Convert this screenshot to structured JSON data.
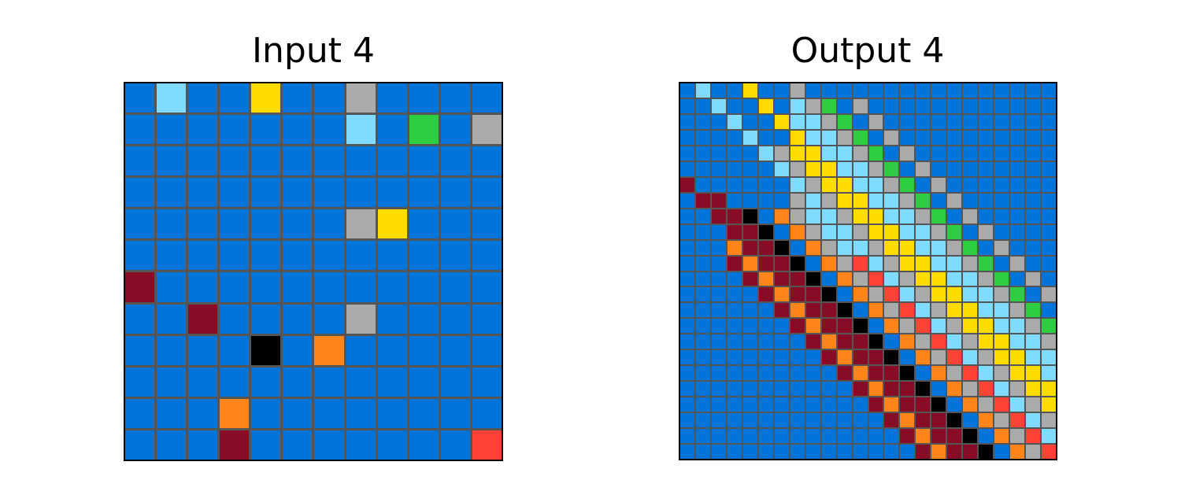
{
  "input_title": "Input 4",
  "output_title": "Output 4",
  "palette": {
    "0": "#000000",
    "1": "#0074D9",
    "2": "#FF4136",
    "3": "#2ECC40",
    "4": "#FFDC00",
    "5": "#AAAAAA",
    "6": "#F012BE",
    "7": "#FF851B",
    "8": "#7FDBFF",
    "9": "#870C25"
  },
  "input_grid": [
    [
      1,
      8,
      1,
      1,
      4,
      1,
      1,
      5,
      1,
      1,
      1,
      1
    ],
    [
      1,
      1,
      1,
      1,
      1,
      1,
      1,
      8,
      1,
      3,
      1,
      5
    ],
    [
      1,
      1,
      1,
      1,
      1,
      1,
      1,
      1,
      1,
      1,
      1,
      1
    ],
    [
      1,
      1,
      1,
      1,
      1,
      1,
      1,
      1,
      1,
      1,
      1,
      1
    ],
    [
      1,
      1,
      1,
      1,
      1,
      1,
      1,
      5,
      4,
      1,
      1,
      1
    ],
    [
      1,
      1,
      1,
      1,
      1,
      1,
      1,
      1,
      1,
      1,
      1,
      1
    ],
    [
      9,
      1,
      1,
      1,
      1,
      1,
      1,
      1,
      1,
      1,
      1,
      1
    ],
    [
      1,
      1,
      9,
      1,
      1,
      1,
      1,
      5,
      1,
      1,
      1,
      1
    ],
    [
      1,
      1,
      1,
      1,
      0,
      1,
      7,
      1,
      1,
      1,
      1,
      1
    ],
    [
      1,
      1,
      1,
      1,
      1,
      1,
      1,
      1,
      1,
      1,
      1,
      1
    ],
    [
      1,
      1,
      1,
      7,
      1,
      1,
      1,
      1,
      1,
      1,
      1,
      1
    ],
    [
      1,
      1,
      1,
      9,
      1,
      1,
      1,
      1,
      1,
      1,
      1,
      2
    ]
  ],
  "output_grid": [
    [
      1,
      8,
      1,
      1,
      4,
      1,
      1,
      5,
      1,
      1,
      1,
      1,
      1,
      1,
      1,
      1,
      1,
      1,
      1,
      1,
      1,
      1,
      1,
      1
    ],
    [
      1,
      1,
      8,
      1,
      1,
      4,
      1,
      8,
      5,
      3,
      1,
      5,
      1,
      1,
      1,
      1,
      1,
      1,
      1,
      1,
      1,
      1,
      1,
      1
    ],
    [
      1,
      1,
      1,
      8,
      1,
      1,
      4,
      8,
      8,
      5,
      3,
      1,
      5,
      1,
      1,
      1,
      1,
      1,
      1,
      1,
      1,
      1,
      1,
      1
    ],
    [
      1,
      1,
      1,
      1,
      8,
      1,
      1,
      4,
      8,
      8,
      5,
      3,
      1,
      5,
      1,
      1,
      1,
      1,
      1,
      1,
      1,
      1,
      1,
      1
    ],
    [
      1,
      1,
      1,
      1,
      1,
      8,
      5,
      4,
      4,
      8,
      8,
      5,
      3,
      1,
      5,
      1,
      1,
      1,
      1,
      1,
      1,
      1,
      1,
      1
    ],
    [
      1,
      1,
      1,
      1,
      1,
      1,
      8,
      5,
      4,
      4,
      8,
      8,
      5,
      3,
      1,
      5,
      1,
      1,
      1,
      1,
      1,
      1,
      1,
      1
    ],
    [
      9,
      1,
      1,
      1,
      1,
      1,
      1,
      8,
      5,
      4,
      4,
      8,
      8,
      5,
      3,
      1,
      5,
      1,
      1,
      1,
      1,
      1,
      1,
      1
    ],
    [
      1,
      9,
      9,
      1,
      1,
      1,
      1,
      5,
      8,
      5,
      4,
      4,
      8,
      8,
      5,
      3,
      1,
      5,
      1,
      1,
      1,
      1,
      1,
      1
    ],
    [
      1,
      1,
      9,
      9,
      0,
      1,
      7,
      5,
      8,
      8,
      5,
      4,
      4,
      8,
      8,
      5,
      3,
      1,
      5,
      1,
      1,
      1,
      1,
      1
    ],
    [
      1,
      1,
      1,
      9,
      9,
      0,
      1,
      7,
      5,
      8,
      8,
      5,
      4,
      4,
      8,
      8,
      5,
      3,
      1,
      5,
      1,
      1,
      1,
      1
    ],
    [
      1,
      1,
      1,
      7,
      9,
      9,
      0,
      1,
      7,
      5,
      8,
      8,
      5,
      4,
      4,
      8,
      8,
      5,
      3,
      1,
      5,
      1,
      1,
      1
    ],
    [
      1,
      1,
      1,
      9,
      7,
      9,
      9,
      0,
      1,
      7,
      5,
      2,
      8,
      5,
      4,
      4,
      8,
      8,
      5,
      3,
      1,
      5,
      1,
      1
    ],
    [
      1,
      1,
      1,
      1,
      9,
      7,
      9,
      9,
      0,
      1,
      7,
      5,
      2,
      8,
      5,
      4,
      4,
      8,
      8,
      5,
      3,
      1,
      5,
      1
    ],
    [
      1,
      1,
      1,
      1,
      1,
      9,
      7,
      9,
      9,
      0,
      1,
      7,
      5,
      2,
      8,
      5,
      4,
      4,
      8,
      8,
      5,
      3,
      1,
      5
    ],
    [
      1,
      1,
      1,
      1,
      1,
      1,
      9,
      7,
      9,
      9,
      0,
      1,
      7,
      5,
      2,
      8,
      5,
      4,
      4,
      8,
      8,
      5,
      3,
      1
    ],
    [
      1,
      1,
      1,
      1,
      1,
      1,
      1,
      9,
      7,
      9,
      9,
      0,
      1,
      7,
      5,
      2,
      8,
      5,
      4,
      4,
      8,
      8,
      5,
      3
    ],
    [
      1,
      1,
      1,
      1,
      1,
      1,
      1,
      1,
      9,
      7,
      9,
      9,
      0,
      1,
      7,
      5,
      2,
      8,
      5,
      4,
      4,
      8,
      8,
      5
    ],
    [
      1,
      1,
      1,
      1,
      1,
      1,
      1,
      1,
      1,
      9,
      7,
      9,
      9,
      0,
      1,
      7,
      5,
      2,
      8,
      5,
      4,
      4,
      8,
      8
    ],
    [
      1,
      1,
      1,
      1,
      1,
      1,
      1,
      1,
      1,
      1,
      9,
      7,
      9,
      9,
      0,
      1,
      7,
      5,
      2,
      8,
      5,
      4,
      4,
      8
    ],
    [
      1,
      1,
      1,
      1,
      1,
      1,
      1,
      1,
      1,
      1,
      1,
      9,
      7,
      9,
      9,
      0,
      1,
      7,
      5,
      2,
      8,
      5,
      4,
      4
    ],
    [
      1,
      1,
      1,
      1,
      1,
      1,
      1,
      1,
      1,
      1,
      1,
      1,
      9,
      7,
      9,
      9,
      0,
      1,
      7,
      5,
      2,
      8,
      5,
      4
    ],
    [
      1,
      1,
      1,
      1,
      1,
      1,
      1,
      1,
      1,
      1,
      1,
      1,
      1,
      9,
      7,
      9,
      9,
      0,
      1,
      7,
      5,
      2,
      8,
      5
    ],
    [
      1,
      1,
      1,
      1,
      1,
      1,
      1,
      1,
      1,
      1,
      1,
      1,
      1,
      1,
      9,
      7,
      9,
      9,
      0,
      1,
      7,
      5,
      2,
      8
    ],
    [
      1,
      1,
      1,
      1,
      1,
      1,
      1,
      1,
      1,
      1,
      1,
      1,
      1,
      1,
      1,
      9,
      7,
      9,
      9,
      0,
      1,
      7,
      5,
      2
    ]
  ]
}
